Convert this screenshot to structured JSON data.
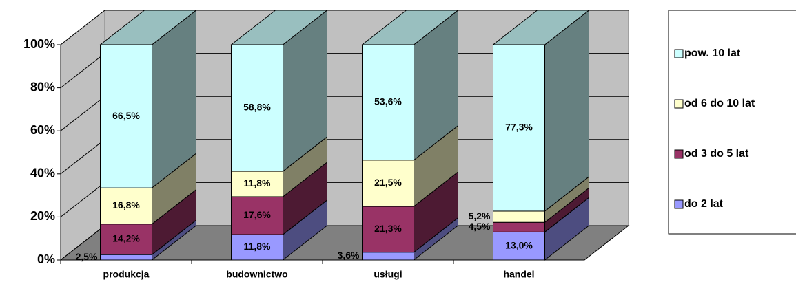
{
  "chart_data": {
    "type": "bar",
    "stacked": true,
    "three_d": true,
    "categories": [
      "produkcja",
      "budownictwo",
      "usługi",
      "handel"
    ],
    "series": [
      {
        "name": "do 2 lat",
        "color": "#9999ff",
        "values": [
          2.5,
          11.8,
          3.6,
          13.0
        ],
        "value_labels": [
          "2,5%",
          "11,8%",
          "3,6%",
          "13,0%"
        ]
      },
      {
        "name": "od 3 do 5 lat",
        "color": "#993366",
        "values": [
          14.2,
          17.6,
          21.3,
          4.5
        ],
        "value_labels": [
          "14,2%",
          "17,6%",
          "21,3%",
          "4,5%"
        ]
      },
      {
        "name": "od 6 do 10 lat",
        "color": "#ffffcc",
        "values": [
          16.8,
          11.8,
          21.5,
          5.2
        ],
        "value_labels": [
          "16,8%",
          "11,8%",
          "21,5%",
          "5,2%"
        ]
      },
      {
        "name": "pow. 10 lat",
        "color": "#ccffff",
        "values": [
          66.5,
          58.8,
          53.6,
          77.3
        ],
        "value_labels": [
          "66,5%",
          "58,8%",
          "53,6%",
          "77,3%"
        ]
      }
    ],
    "ylim": [
      0,
      100
    ],
    "yticks": [
      {
        "value": 0,
        "label": "0%"
      },
      {
        "value": 20,
        "label": "20%"
      },
      {
        "value": 40,
        "label": "40%"
      },
      {
        "value": 60,
        "label": "60%"
      },
      {
        "value": 80,
        "label": "80%"
      },
      {
        "value": 100,
        "label": "100%"
      }
    ],
    "grid": true,
    "legend": "right"
  }
}
